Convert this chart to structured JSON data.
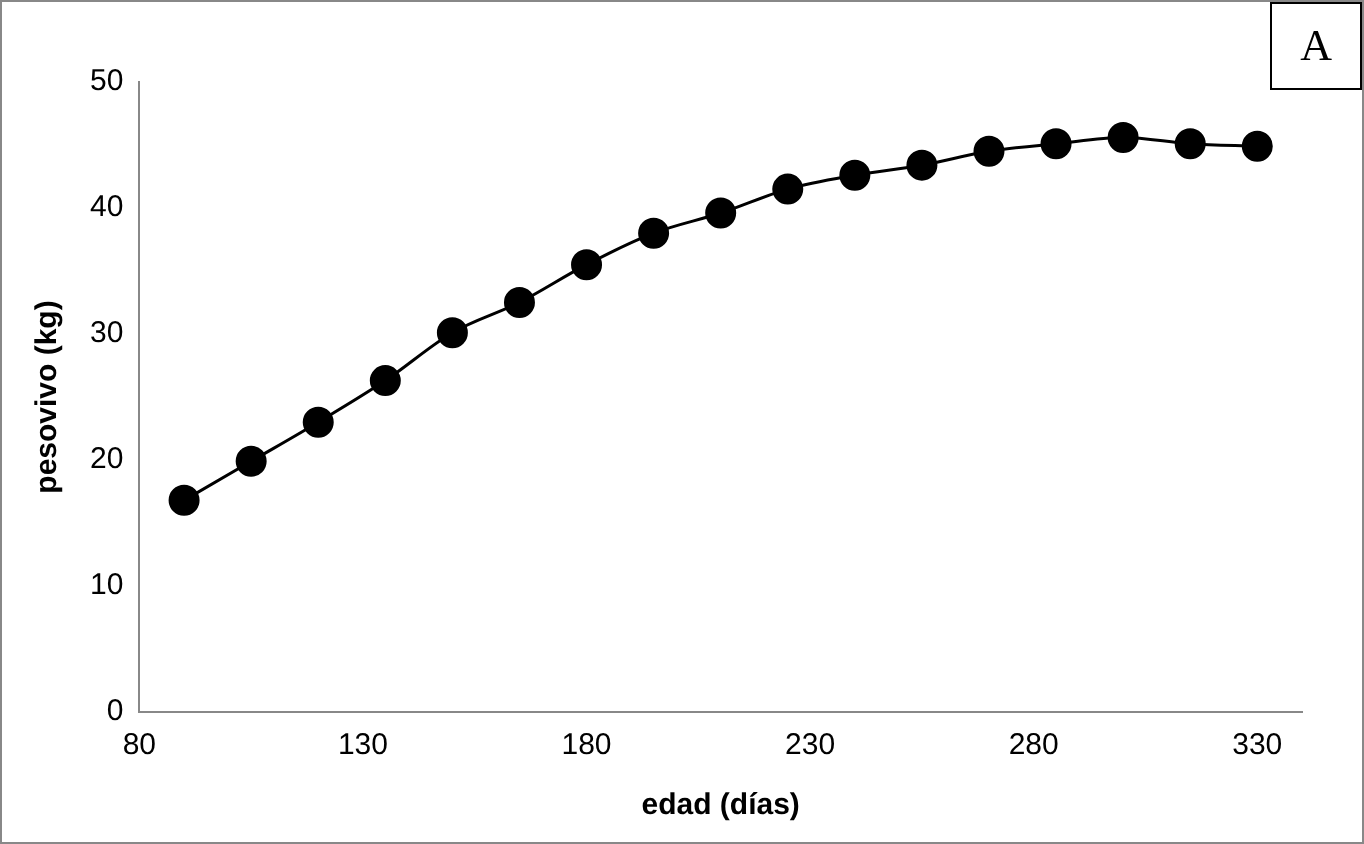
{
  "chart_data": {
    "type": "line",
    "xlabel": "edad (días)",
    "ylabel": "pesovivo (kg)",
    "annotations": [
      "A"
    ],
    "x": [
      90,
      105,
      120,
      135,
      150,
      165,
      180,
      195,
      210,
      225,
      240,
      255,
      270,
      285,
      300,
      315,
      330
    ],
    "series": [
      {
        "color": "#000000",
        "values": [
          16.8,
          19.9,
          23.0,
          26.3,
          30.1,
          32.5,
          35.5,
          38.0,
          39.6,
          41.5,
          42.6,
          43.4,
          44.5,
          45.1,
          45.6,
          45.1,
          44.9
        ]
      }
    ],
    "xlim": [
      80,
      340
    ],
    "xticks": [
      80,
      130,
      180,
      230,
      280,
      330
    ],
    "ylim": [
      0,
      50
    ],
    "yticks": [
      0,
      10,
      20,
      30,
      40,
      50
    ],
    "grid": false,
    "legend": false,
    "marker": "circle",
    "line_style": "solid"
  }
}
